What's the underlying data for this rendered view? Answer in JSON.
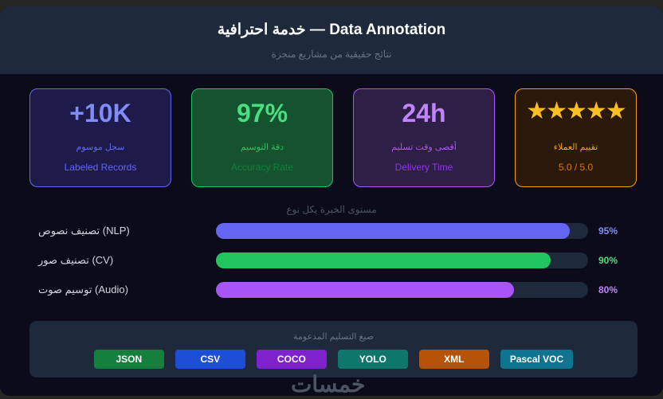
{
  "header": {
    "title": "خدمة احترافية — Data Annotation",
    "subtitle": "نتائج حقيقية من مشاريع منجزة"
  },
  "stats": [
    {
      "value": "+10K",
      "label_ar": "سجل موسوم",
      "label_en": "Labeled Records",
      "color": "#818cf8",
      "bg": "#1e1b4b",
      "border": "#6366f1",
      "sub": "#6366f1"
    },
    {
      "value": "97%",
      "label_ar": "دقة التوسيم",
      "label_en": "Accuracy Rate",
      "color": "#4ade80",
      "bg": "#14532d",
      "border": "#22c55e",
      "sub": "#15803d"
    },
    {
      "value": "24h",
      "label_ar": "أقصى وقت تسليم",
      "label_en": "Delivery Time",
      "color": "#c084fc",
      "bg": "#2e1f47",
      "border": "#a855f7",
      "sub": "#9333ea"
    },
    {
      "value": "★★★★★",
      "label_ar": "تقييم العملاء",
      "label_en": "5.0 / 5.0",
      "color": "#fbbf24",
      "bg": "#2b1a0b",
      "border": "#f59e0b",
      "sub": "#d97706",
      "rating": 5
    }
  ],
  "skills": {
    "title": "مستوى الخبرة بكل نوع",
    "items": [
      {
        "label": "تصنيف نصوص (NLP)",
        "percent": 95,
        "percent_label": "95%",
        "color": "#6366f1",
        "text_color": "#818cf8"
      },
      {
        "label": "تصنيف صور (CV)",
        "percent": 90,
        "percent_label": "90%",
        "color": "#22c55e",
        "text_color": "#4ade80"
      },
      {
        "label": "توسيم صوت (Audio)",
        "percent": 80,
        "percent_label": "80%",
        "color": "#a855f7",
        "text_color": "#c084fc"
      }
    ]
  },
  "formats": {
    "title": "صيغ التسليم المدعومة",
    "items": [
      {
        "label": "JSON",
        "color": "#15803d"
      },
      {
        "label": "CSV",
        "color": "#1d4ed8"
      },
      {
        "label": "COCO",
        "color": "#7e22ce"
      },
      {
        "label": "YOLO",
        "color": "#0f766e"
      },
      {
        "label": "XML",
        "color": "#b45309"
      },
      {
        "label": "Pascal VOC",
        "color": "#0e7490"
      }
    ]
  },
  "watermark": "خمسات"
}
